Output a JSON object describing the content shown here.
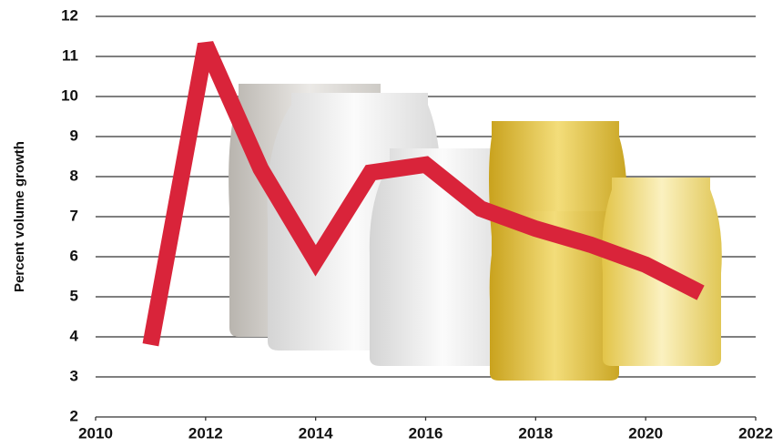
{
  "chart_data": {
    "type": "line",
    "y_label": "Percent volume growth",
    "x": [
      2011,
      2012,
      2013,
      2014,
      2015,
      2016,
      2017,
      2018,
      2019,
      2020,
      2021
    ],
    "series": [
      {
        "color": "#d9243a",
        "values": [
          3.8,
          11.3,
          8.2,
          5.9,
          8.1,
          8.3,
          7.2,
          6.7,
          6.3,
          5.8,
          5.1
        ]
      }
    ],
    "xlim": [
      2010,
      2022
    ],
    "xticks": [
      2010,
      2012,
      2014,
      2016,
      2018,
      2020,
      2022
    ],
    "ylim": [
      2,
      12
    ],
    "yticks": [
      2,
      3,
      4,
      5,
      6,
      7,
      8,
      9,
      10,
      11,
      12
    ],
    "grid": true
  }
}
